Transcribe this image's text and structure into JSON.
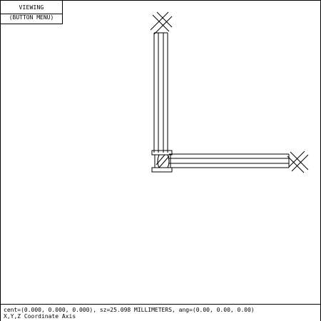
{
  "menu": {
    "title": "VIEWING",
    "button_label": "(BUTTON MENU)"
  },
  "status": {
    "line1": "cent=(0.000, 0.000, 0.000), sz=25.098 MILLIMETERS, ang=(0.00, 0.00, 0.00)",
    "line2": "X,Y,Z Coordinate Axis"
  },
  "colors": {
    "background": "#ffffff",
    "ink": "#000000"
  },
  "icons": {
    "axis_end_marker": "x-cross-icon"
  }
}
